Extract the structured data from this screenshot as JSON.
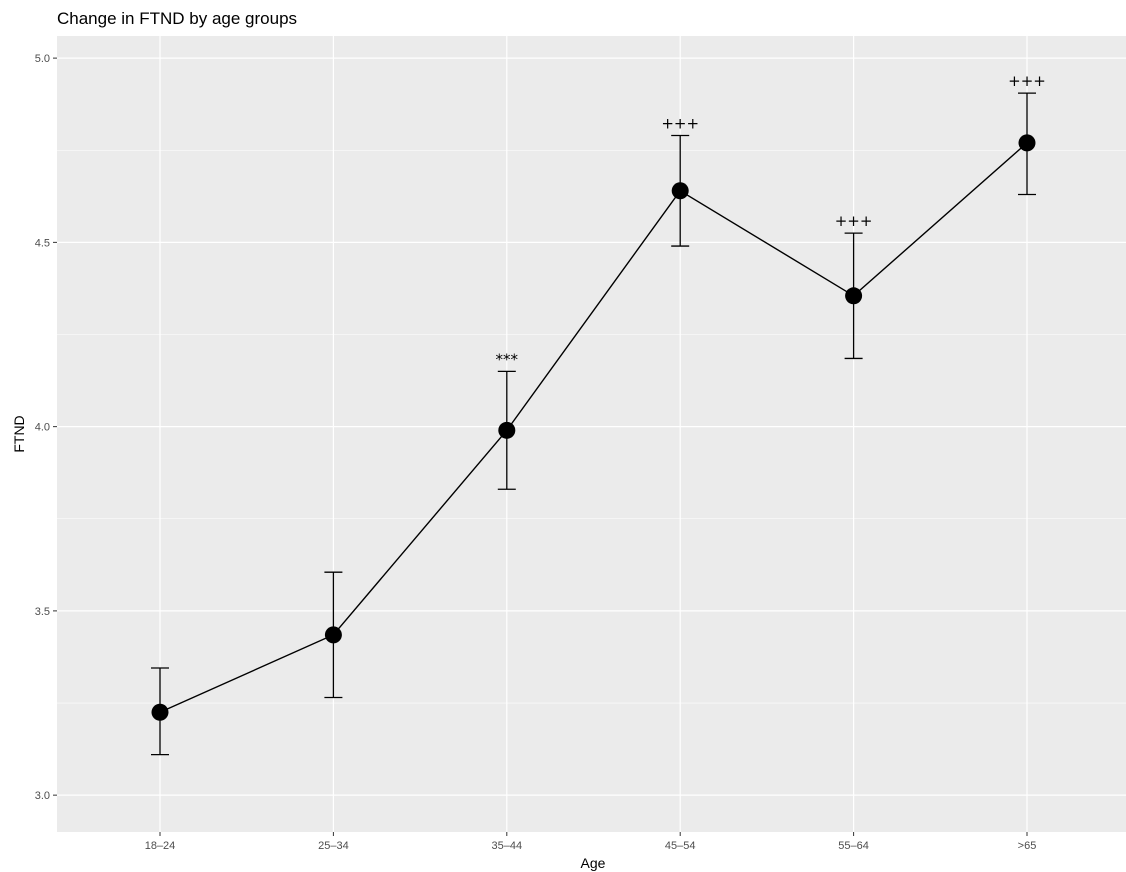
{
  "chart_data": {
    "type": "line",
    "title": "Change in FTND by age groups",
    "xlabel": "Age",
    "ylabel": "FTND",
    "categories": [
      "18–24",
      "25–34",
      "35–44",
      "45–54",
      "55–64",
      ">65"
    ],
    "series": [
      {
        "values": [
          3.225,
          3.435,
          3.99,
          4.64,
          4.355,
          4.77
        ],
        "error_low": [
          3.11,
          3.265,
          3.83,
          4.49,
          4.185,
          4.63
        ],
        "error_high": [
          3.345,
          3.605,
          4.15,
          4.79,
          4.525,
          4.905
        ]
      }
    ],
    "annotations": [
      "",
      "",
      "***",
      "+++",
      "+++",
      "+++"
    ],
    "ylim": [
      2.9,
      5.06
    ],
    "yticks": [
      3.0,
      3.5,
      4.0,
      4.5,
      5.0
    ],
    "ytick_labels": [
      "3.0",
      "3.5",
      "4.0",
      "4.5",
      "5.0"
    ],
    "grid": true,
    "panel_color": "#ebebeb",
    "grid_color": "#ffffff",
    "marker_color": "#000000"
  }
}
